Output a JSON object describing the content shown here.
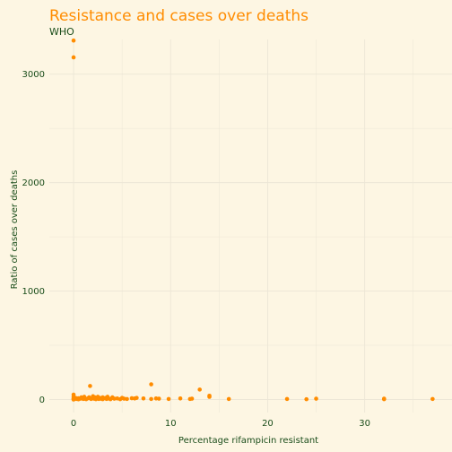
{
  "chart_data": {
    "type": "scatter",
    "title": "Resistance and cases over deaths",
    "subtitle": "WHO",
    "xlabel": "Percentage rifampicin resistant",
    "ylabel": "Ratio of cases over deaths",
    "xlim": [
      -2.5,
      39
    ],
    "ylim": [
      -120,
      3320
    ],
    "xticks": [
      0,
      10,
      20,
      30
    ],
    "yticks": [
      0,
      1000,
      2000,
      3000
    ],
    "grid": true,
    "colors": {
      "background": "#fdf6e3",
      "grid": "#ece6d6",
      "point": "#ff8c00",
      "title": "#ff8c00",
      "text": "#1a4d1a"
    },
    "points": [
      [
        0,
        3310
      ],
      [
        0,
        3155
      ],
      [
        0,
        45
      ],
      [
        0,
        25
      ],
      [
        0,
        10
      ],
      [
        0,
        5
      ],
      [
        0,
        0
      ],
      [
        0.2,
        15
      ],
      [
        0.3,
        5
      ],
      [
        0.5,
        12
      ],
      [
        0.5,
        2
      ],
      [
        0.7,
        8
      ],
      [
        0.8,
        20
      ],
      [
        1.0,
        5
      ],
      [
        1.0,
        15
      ],
      [
        1.1,
        25
      ],
      [
        1.2,
        8
      ],
      [
        1.3,
        3
      ],
      [
        1.5,
        12
      ],
      [
        1.6,
        20
      ],
      [
        1.7,
        125
      ],
      [
        1.8,
        5
      ],
      [
        2.0,
        15
      ],
      [
        2.0,
        30
      ],
      [
        2.1,
        8
      ],
      [
        2.2,
        20
      ],
      [
        2.3,
        3
      ],
      [
        2.4,
        12
      ],
      [
        2.5,
        25
      ],
      [
        2.6,
        5
      ],
      [
        2.7,
        15
      ],
      [
        2.8,
        8
      ],
      [
        3.0,
        20
      ],
      [
        3.0,
        3
      ],
      [
        3.1,
        10
      ],
      [
        3.3,
        15
      ],
      [
        3.4,
        5
      ],
      [
        3.5,
        25
      ],
      [
        3.6,
        10
      ],
      [
        3.8,
        3
      ],
      [
        4.0,
        15
      ],
      [
        4.0,
        20
      ],
      [
        4.2,
        8
      ],
      [
        4.5,
        10
      ],
      [
        4.8,
        3
      ],
      [
        5.0,
        15
      ],
      [
        5.2,
        8
      ],
      [
        5.5,
        5
      ],
      [
        6.0,
        12
      ],
      [
        6.3,
        10
      ],
      [
        6.5,
        15
      ],
      [
        7.2,
        10
      ],
      [
        8.0,
        140
      ],
      [
        8.0,
        5
      ],
      [
        8.5,
        10
      ],
      [
        8.8,
        8
      ],
      [
        9.8,
        5
      ],
      [
        11.0,
        10
      ],
      [
        12.0,
        5
      ],
      [
        12.2,
        8
      ],
      [
        13.0,
        92
      ],
      [
        14.0,
        25
      ],
      [
        14.0,
        35
      ],
      [
        16.0,
        5
      ],
      [
        22.0,
        5
      ],
      [
        24.0,
        3
      ],
      [
        25.0,
        8
      ],
      [
        32.0,
        8
      ],
      [
        32.0,
        3
      ],
      [
        37.0,
        5
      ]
    ]
  }
}
